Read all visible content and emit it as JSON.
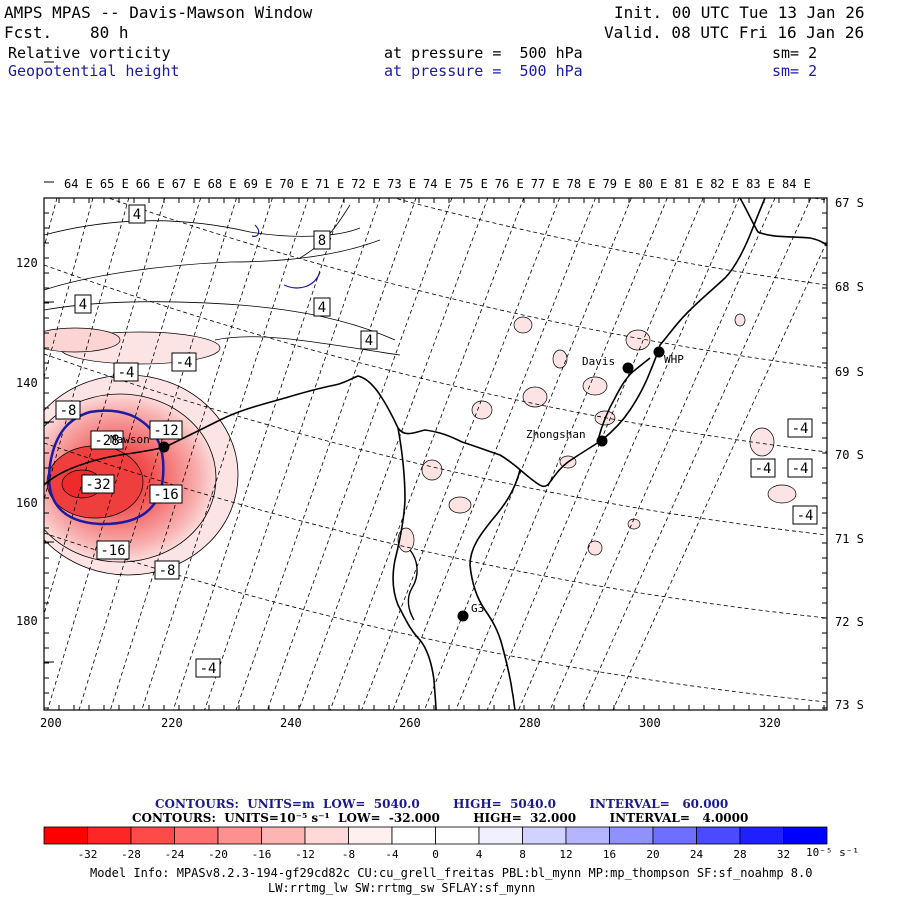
{
  "header": {
    "title": "AMPS MPAS -- Davis-Mawson Window",
    "fcst_label": "Fcst.",
    "fcst_value": "80 h",
    "init": "Init. 00 UTC Tue 13 Jan 26",
    "valid": "Valid. 08 UTC Fri 16 Jan 26",
    "field1_name": "Relative vorticity",
    "field1_pressure": "at pressure =  500 hPa",
    "field1_sm": "sm= 2",
    "field2_name": "Geopotential height",
    "field2_pressure": "at pressure =  500 hPa",
    "field2_sm": "sm= 2"
  },
  "map": {
    "top_labels": [
      "64 E",
      "65 E",
      "66 E",
      "67 E",
      "68 E",
      "69 E",
      "70 E",
      "71 E",
      "72 E",
      "73 E",
      "74 E",
      "75 E",
      "76 E",
      "77 E",
      "78 E",
      "79 E",
      "80 E",
      "81 E",
      "82 E",
      "83 E",
      "84 E"
    ],
    "right_labels": [
      "67 S",
      "68 S",
      "69 S",
      "70 S",
      "71 S",
      "72 S",
      "73 S"
    ],
    "left_labels": [
      "120",
      "140",
      "160",
      "180"
    ],
    "bottom_labels": [
      "200",
      "220",
      "240",
      "260",
      "280",
      "300",
      "320"
    ],
    "stations": [
      {
        "name": "Davis"
      },
      {
        "name": "WHP"
      },
      {
        "name": "Zhongshan"
      },
      {
        "name": "Mawson"
      },
      {
        "name": "G3"
      }
    ],
    "contour_labels": [
      "4",
      "8",
      "4",
      "4",
      "4",
      "-4",
      "-4",
      "-8",
      "-12",
      "-16",
      "-28",
      "-32",
      "-16",
      "-8",
      "-4",
      "-4",
      "-4",
      "-4",
      "-4",
      "-4"
    ],
    "colors": {
      "coast": "#000000",
      "height": "#1a1aa6",
      "red_strong": "#f24a4a",
      "red_light": "#ffdede"
    }
  },
  "contour_info": {
    "line1": "CONTOURS:  UNITS=m  LOW=  5040.0        HIGH=  5040.0        INTERVAL=   60.000",
    "line2": "CONTOURS:  UNITS=10⁻⁵ s⁻¹  LOW=  -32.000        HIGH=  32.000        INTERVAL=   4.0000"
  },
  "colorbar": {
    "colors": [
      "#ff0000",
      "#ff2626",
      "#ff4a4a",
      "#ff6e6e",
      "#ff9090",
      "#ffb4b4",
      "#ffd8d8",
      "#fff0f0",
      "#ffffff",
      "#ffffff",
      "#f0f0ff",
      "#d2d2ff",
      "#b4b4ff",
      "#9090ff",
      "#6e6eff",
      "#4a4aff",
      "#2020ff",
      "#0000ff"
    ],
    "ticks": [
      "-32",
      "-28",
      "-24",
      "-20",
      "-16",
      "-12",
      "-8",
      "-4",
      "0",
      "4",
      "8",
      "12",
      "16",
      "20",
      "24",
      "28",
      "32"
    ],
    "units": "10⁻⁵ s⁻¹"
  },
  "model_info": {
    "line1": "Model Info: MPASv8.2.3-194-gf29cd82c CU:cu_grell_freitas PBL:bl_mynn MP:mp_thompson SF:sf_noahmp 8.0",
    "line2": "LW:rrtmg_lw SW:rrtmg_sw SFLAY:sf_mynn"
  }
}
